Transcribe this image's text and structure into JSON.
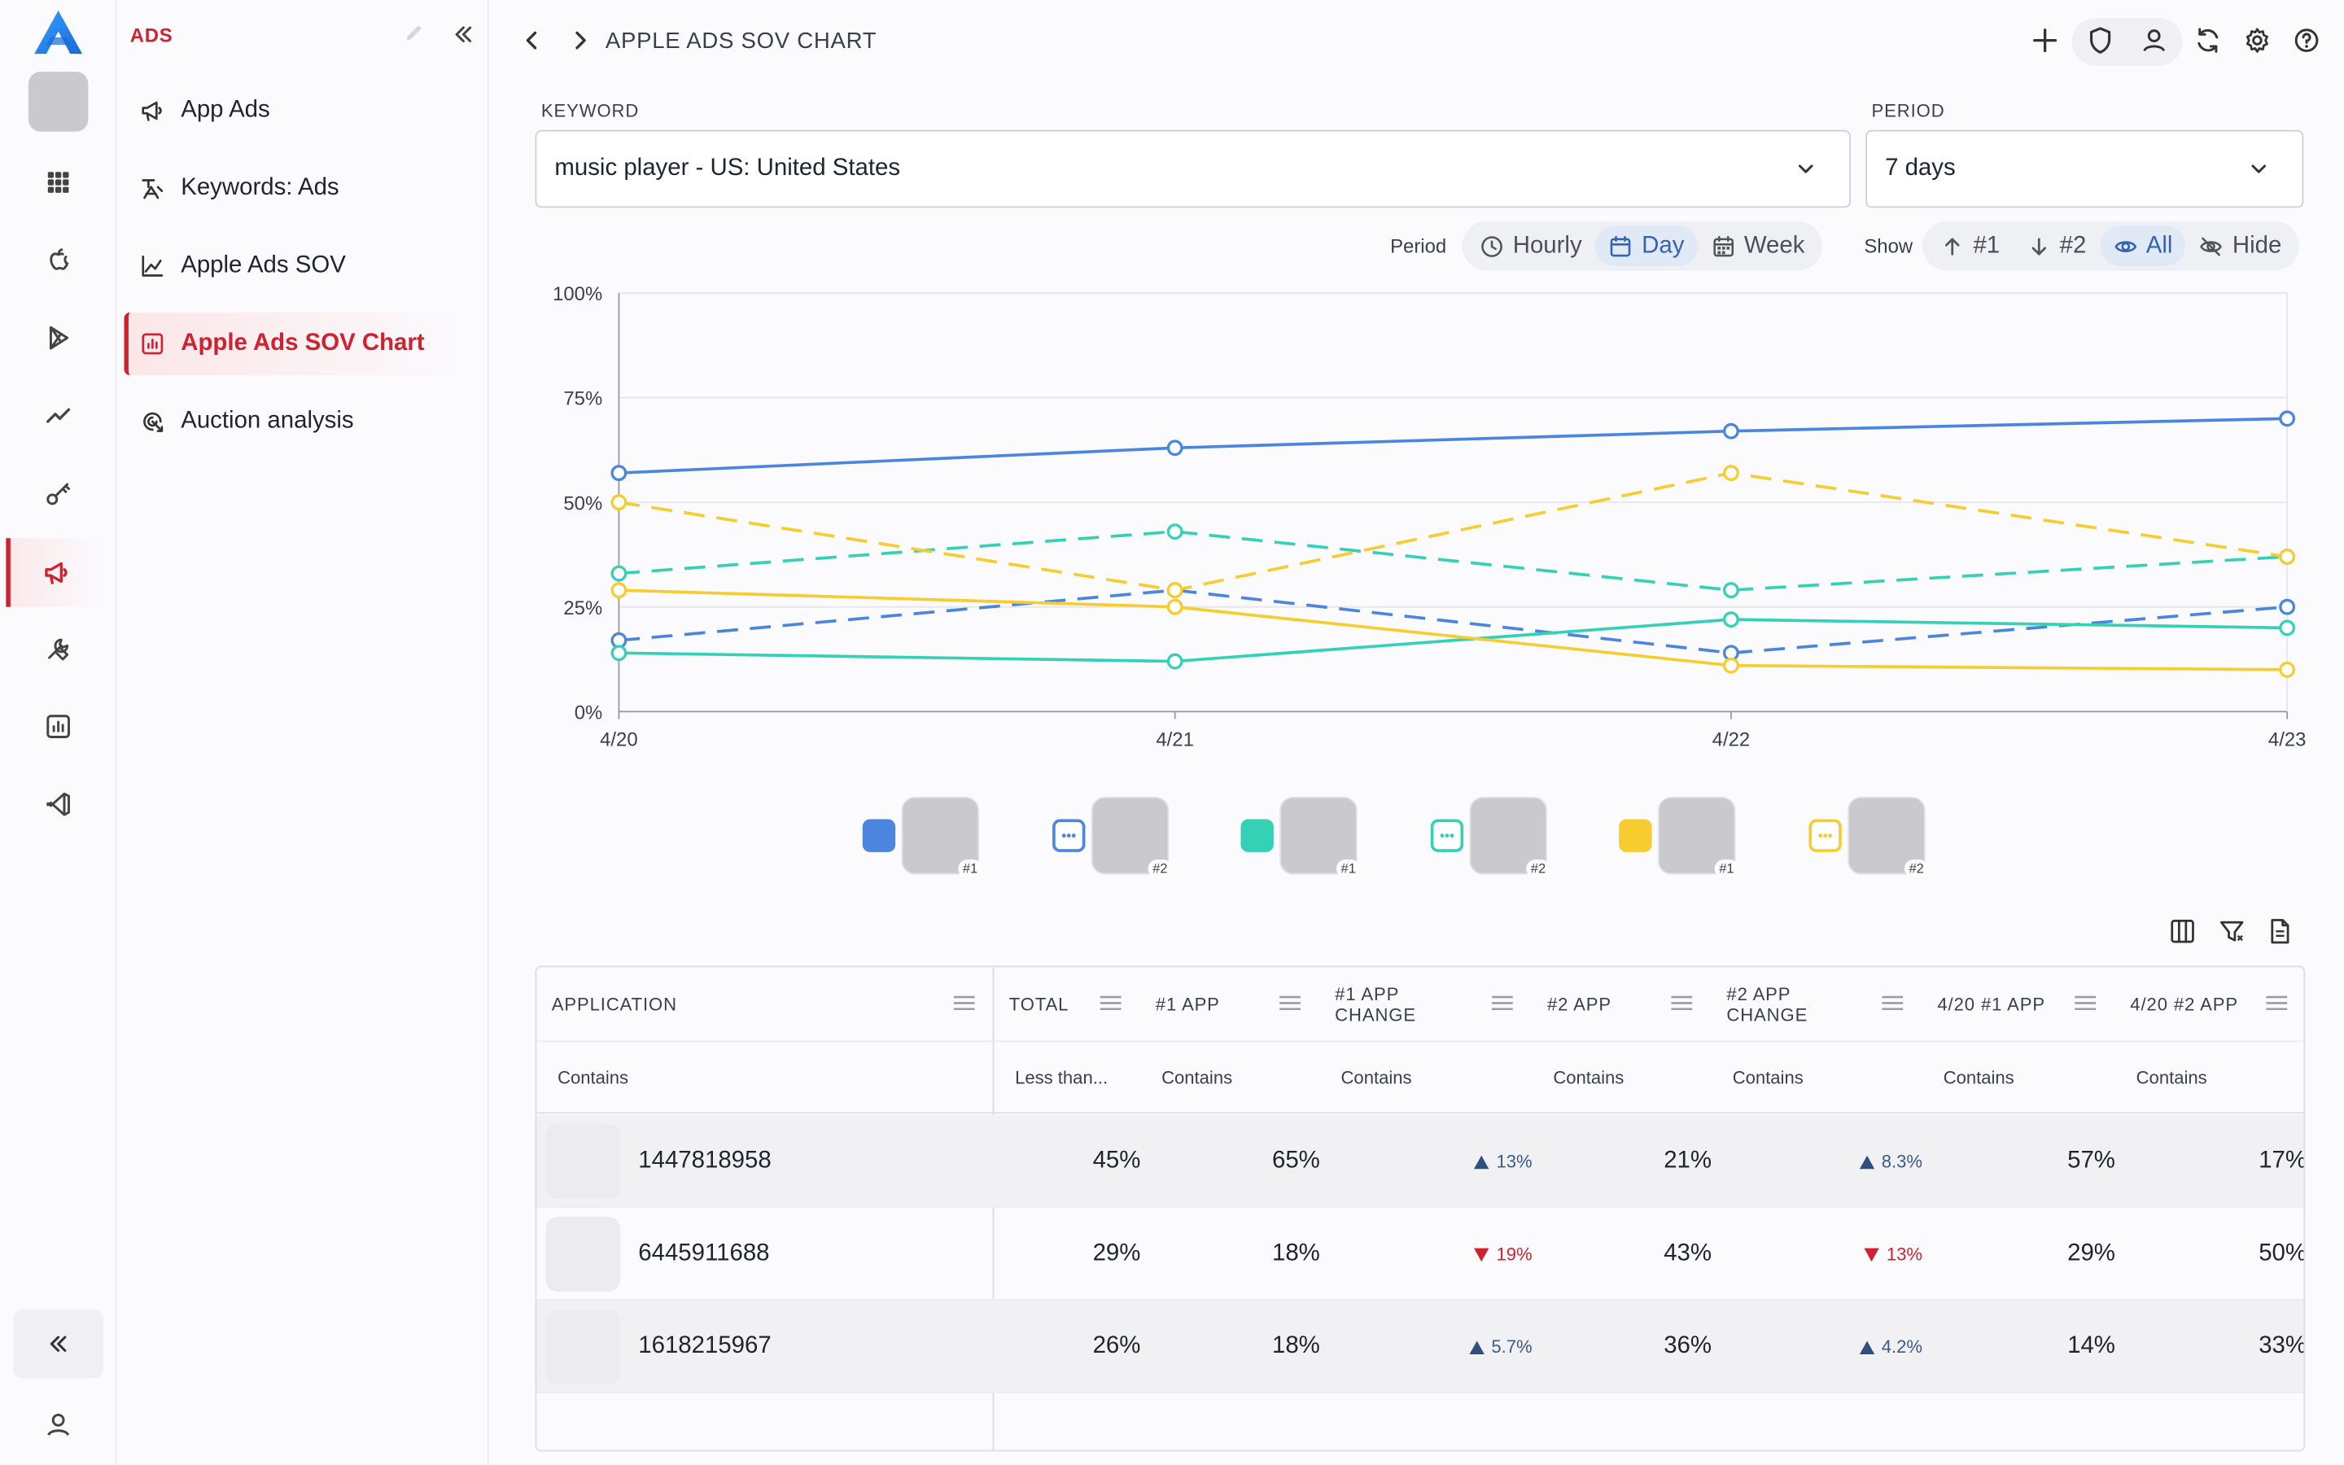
{
  "nav": {
    "section_title": "ADS",
    "items": [
      {
        "label": "App Ads",
        "icon": "megaphone-icon"
      },
      {
        "label": "Keywords: Ads",
        "icon": "keyword-ads-icon"
      },
      {
        "label": "Apple Ads SOV",
        "icon": "line-chart-icon"
      },
      {
        "label": "Apple Ads SOV Chart",
        "icon": "bar-chart-icon"
      },
      {
        "label": "Auction analysis",
        "icon": "auction-icon"
      }
    ]
  },
  "header": {
    "breadcrumb": "APPLE ADS SOV CHART"
  },
  "filters": {
    "keyword_label": "KEYWORD",
    "keyword_value": "music player - US: United States",
    "period_label": "PERIOD",
    "period_value": "7 days"
  },
  "controls": {
    "period_label": "Period",
    "period_options": [
      "Hourly",
      "Day",
      "Week"
    ],
    "period_selected": "Day",
    "show_label": "Show",
    "show_options": [
      "#1",
      "#2",
      "All",
      "Hide"
    ],
    "show_selected": "All"
  },
  "colors": {
    "blue": "#4a86e0",
    "teal": "#34d1b6",
    "yellow": "#f7cc2e",
    "accent": "#cf2230"
  },
  "chart_data": {
    "type": "line",
    "x": [
      "4/20",
      "4/21",
      "4/22",
      "4/23"
    ],
    "ylim": [
      0,
      100
    ],
    "yticks": [
      "0%",
      "25%",
      "50%",
      "75%",
      "100%"
    ],
    "series": [
      {
        "color": "#4a86e0",
        "dash": false,
        "values": [
          57,
          63,
          67,
          70
        ]
      },
      {
        "color": "#4a86e0",
        "dash": true,
        "values": [
          17,
          29,
          14,
          25
        ]
      },
      {
        "color": "#34d1b6",
        "dash": false,
        "values": [
          14,
          12,
          22,
          20
        ]
      },
      {
        "color": "#34d1b6",
        "dash": true,
        "values": [
          33,
          43,
          29,
          37
        ]
      },
      {
        "color": "#f7cc2e",
        "dash": false,
        "values": [
          29,
          25,
          11,
          10
        ]
      },
      {
        "color": "#f7cc2e",
        "dash": true,
        "values": [
          50,
          29,
          57,
          37
        ]
      }
    ]
  },
  "legend": [
    {
      "color": "#4a86e0",
      "style": "solid",
      "rank": "#1"
    },
    {
      "color": "#4a86e0",
      "style": "dashed",
      "rank": "#2"
    },
    {
      "color": "#34d1b6",
      "style": "solid",
      "rank": "#1"
    },
    {
      "color": "#34d1b6",
      "style": "dashed",
      "rank": "#2"
    },
    {
      "color": "#f7cc2e",
      "style": "solid",
      "rank": "#1"
    },
    {
      "color": "#f7cc2e",
      "style": "dashed",
      "rank": "#2"
    }
  ],
  "table": {
    "columns": [
      {
        "label": "APPLICATION",
        "filter": "Contains"
      },
      {
        "label": "TOTAL",
        "filter": "Less than..."
      },
      {
        "label": "#1 APP",
        "filter": "Contains"
      },
      {
        "label": "#1 APP CHANGE",
        "filter": "Contains"
      },
      {
        "label": "#2 APP",
        "filter": "Contains"
      },
      {
        "label": "#2 APP CHANGE",
        "filter": "Contains"
      },
      {
        "label": "4/20 #1 APP",
        "filter": "Contains"
      },
      {
        "label": "4/20 #2 APP",
        "filter": "Contains"
      }
    ],
    "rows": [
      {
        "app": "1447818958",
        "total": "45%",
        "app1": "65%",
        "app1_change": "13%",
        "app1_dir": "up",
        "app2": "21%",
        "app2_change": "8.3%",
        "app2_dir": "up",
        "d1": "57%",
        "d2": "17%"
      },
      {
        "app": "6445911688",
        "total": "29%",
        "app1": "18%",
        "app1_change": "19%",
        "app1_dir": "down",
        "app2": "43%",
        "app2_change": "13%",
        "app2_dir": "down",
        "d1": "29%",
        "d2": "50%"
      },
      {
        "app": "1618215967",
        "total": "26%",
        "app1": "18%",
        "app1_change": "5.7%",
        "app1_dir": "up",
        "app2": "36%",
        "app2_change": "4.2%",
        "app2_dir": "up",
        "d1": "14%",
        "d2": "33%"
      }
    ]
  }
}
